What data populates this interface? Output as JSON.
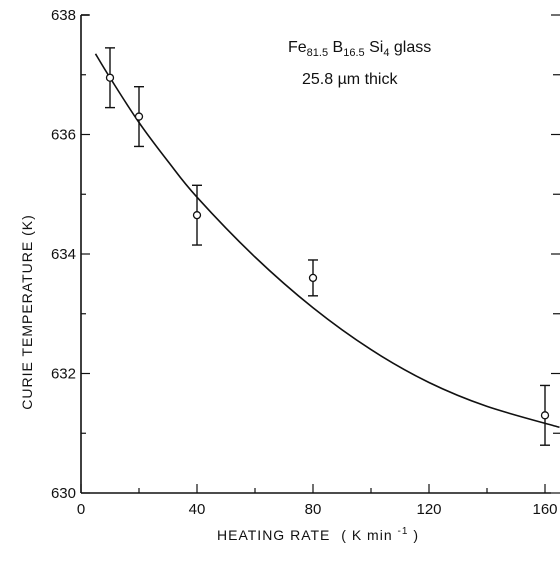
{
  "chart_data": {
    "type": "scatter",
    "xlabel_main": "HEATING RATE",
    "xlabel_unit": "( K min",
    "xlabel_unit_sup": "-1",
    "xlabel_unit_close": ")",
    "ylabel": "CURIE TEMPERATURE (K)",
    "xlim": [
      0,
      160
    ],
    "ylim": [
      630,
      638
    ],
    "x_ticks": [
      0,
      40,
      80,
      120,
      160
    ],
    "y_ticks": [
      630,
      632,
      634,
      636,
      638
    ],
    "x_minor_ticks": [
      20,
      60,
      100,
      140
    ],
    "y_minor_ticks": [
      631,
      633,
      635,
      637
    ],
    "points": [
      {
        "x": 10,
        "y": 636.95,
        "err": 0.5
      },
      {
        "x": 20,
        "y": 636.3,
        "err": 0.5
      },
      {
        "x": 40,
        "y": 634.65,
        "err": 0.5
      },
      {
        "x": 80,
        "y": 633.6,
        "err": 0.3
      },
      {
        "x": 160,
        "y": 631.3,
        "err": 0.5
      }
    ],
    "fit_curve": {
      "x": [
        5,
        10,
        20,
        30,
        40,
        60,
        80,
        100,
        120,
        140,
        165
      ],
      "y": [
        637.35,
        636.95,
        636.2,
        635.55,
        634.95,
        633.95,
        633.1,
        632.4,
        631.85,
        631.45,
        631.1
      ]
    },
    "annotation": {
      "line1": [
        "Fe",
        "81.5",
        " B",
        "16.5",
        " Si",
        "4",
        "  glass"
      ],
      "line2": "25.8 µm  thick"
    }
  }
}
